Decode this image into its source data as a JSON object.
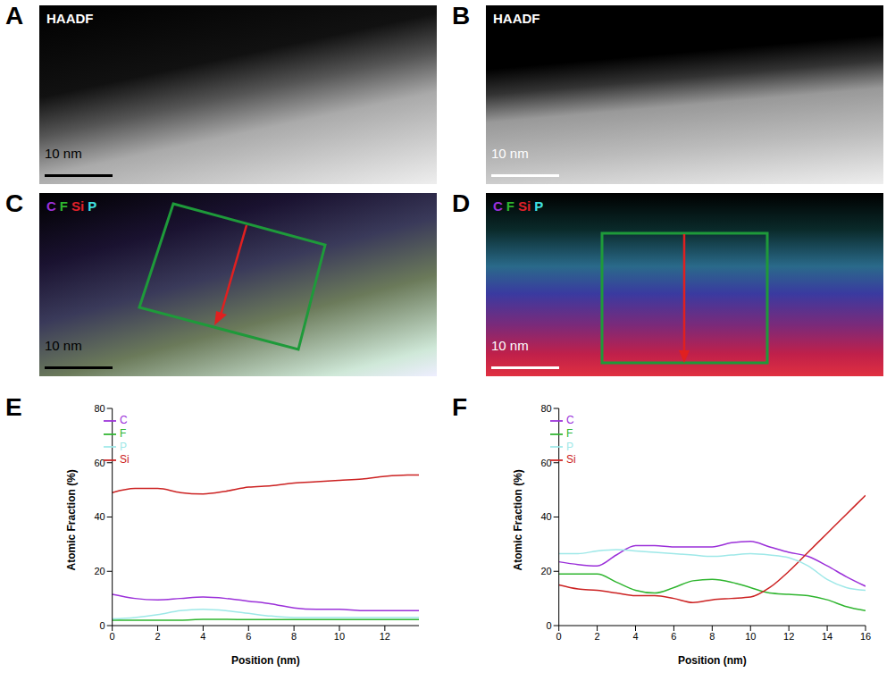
{
  "images": [
    {
      "panel": "A",
      "title": "HAADF",
      "scale_bar": "10 nm"
    },
    {
      "panel": "B",
      "title": "HAADF",
      "scale_bar": "10 nm"
    }
  ],
  "maps": [
    {
      "panel": "C",
      "scale_bar": "10 nm",
      "elements": [
        {
          "name": "C",
          "color": "#9b30d9"
        },
        {
          "name": "F",
          "color": "#2fb52f"
        },
        {
          "name": "Si",
          "color": "#e0202a"
        },
        {
          "name": "P",
          "color": "#3fe0e0"
        }
      ]
    },
    {
      "panel": "D",
      "scale_bar": "10 nm",
      "elements": [
        {
          "name": "C",
          "color": "#9b30d9"
        },
        {
          "name": "F",
          "color": "#2fb52f"
        },
        {
          "name": "Si",
          "color": "#e0202a"
        },
        {
          "name": "P",
          "color": "#3fe0e0"
        }
      ]
    }
  ],
  "chart_data": [
    {
      "panel": "E",
      "type": "line",
      "x_label": "Position (nm)",
      "y_label": "Atomic Fraction (%)",
      "x": [
        0,
        1,
        2,
        3,
        4,
        5,
        6,
        7,
        8,
        9,
        10,
        11,
        12,
        13,
        13.5
      ],
      "xlim": [
        0,
        13.5
      ],
      "xticks": [
        0,
        2,
        4,
        6,
        8,
        10,
        12
      ],
      "ylim": [
        0,
        80
      ],
      "yticks": [
        0,
        20,
        40,
        60,
        80
      ],
      "legend": "upper left",
      "series": [
        {
          "name": "C",
          "color": "#9b30d9",
          "values": [
            11.5,
            10,
            9.5,
            10,
            10.5,
            10,
            9,
            8,
            6.5,
            6,
            6,
            5.5,
            5.5,
            5.5,
            5.5
          ]
        },
        {
          "name": "F",
          "color": "#2fb52f",
          "values": [
            2,
            2,
            2,
            2,
            2.3,
            2.3,
            2.2,
            2.2,
            2.2,
            2.2,
            2.2,
            2.2,
            2.2,
            2.2,
            2.2
          ]
        },
        {
          "name": "Si",
          "color": "#cc2222",
          "values": [
            49,
            50.5,
            50.5,
            49,
            48.5,
            49.5,
            51,
            51.5,
            52.5,
            53,
            53.5,
            54,
            55,
            55.5,
            55.5
          ]
        },
        {
          "name": "P",
          "color": "#9ee8e8",
          "values": [
            2.5,
            3,
            4,
            5.5,
            6,
            5.5,
            4.5,
            3.5,
            3,
            3,
            3,
            3,
            3,
            3,
            3
          ]
        }
      ]
    },
    {
      "panel": "F",
      "type": "line",
      "x_label": "Position (nm)",
      "y_label": "Atomic Fraction (%)",
      "x": [
        0,
        1,
        2,
        3,
        4,
        5,
        6,
        7,
        8,
        9,
        10,
        11,
        12,
        13,
        14,
        15,
        16
      ],
      "xlim": [
        0,
        16
      ],
      "xticks": [
        0,
        2,
        4,
        6,
        8,
        10,
        12,
        14,
        16
      ],
      "ylim": [
        0,
        80
      ],
      "yticks": [
        0,
        20,
        40,
        60,
        80
      ],
      "legend": "upper left",
      "series": [
        {
          "name": "C",
          "color": "#9b30d9",
          "values": [
            23.5,
            22.5,
            22,
            26,
            29.5,
            29.5,
            29,
            29,
            29,
            30.5,
            31,
            29,
            27,
            25.5,
            22,
            18,
            14.5
          ]
        },
        {
          "name": "F",
          "color": "#2fb52f",
          "values": [
            19,
            19,
            19,
            16,
            13,
            12,
            14,
            16.5,
            17,
            16,
            14,
            12,
            11.5,
            11,
            9.5,
            7,
            5.5
          ]
        },
        {
          "name": "Si",
          "color": "#cc2222",
          "values": [
            15,
            13.5,
            13,
            12,
            11,
            11,
            10,
            8.5,
            9.5,
            10,
            10.5,
            14,
            20,
            27,
            34,
            41,
            48
          ]
        },
        {
          "name": "P",
          "color": "#9ee8e8",
          "values": [
            26.5,
            26.5,
            27.5,
            28,
            27.5,
            27,
            26.5,
            26,
            25.5,
            26,
            26.5,
            26,
            25,
            22,
            17,
            14,
            13
          ]
        }
      ]
    }
  ]
}
